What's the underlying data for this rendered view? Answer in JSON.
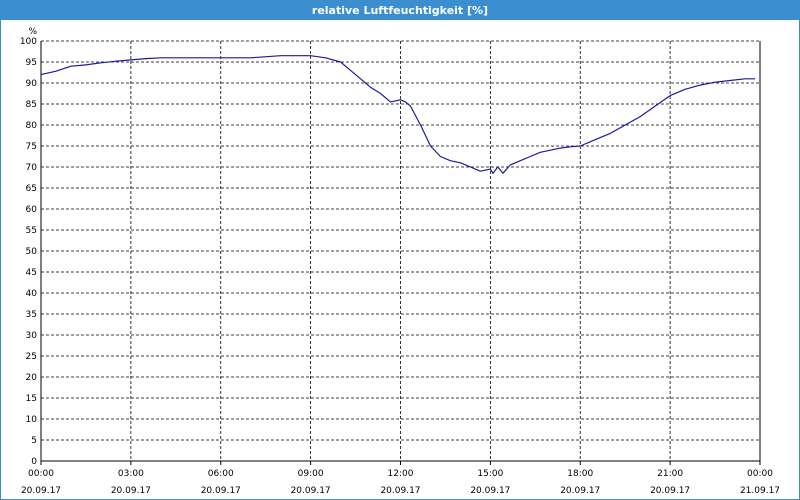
{
  "window": {
    "title": "relative Luftfeuchtigkeit [%]"
  },
  "colors": {
    "titlebar": "#3b8fd0",
    "line": "#1a1aa0",
    "grid": "#000000"
  },
  "chart_data": {
    "type": "line",
    "title": "relative Luftfeuchtigkeit [%]",
    "ylabel": "%",
    "xlabel": "",
    "ylim": [
      0,
      100
    ],
    "yticks": [
      0,
      5,
      10,
      15,
      20,
      25,
      30,
      35,
      40,
      45,
      50,
      55,
      60,
      65,
      70,
      75,
      80,
      85,
      90,
      95,
      100
    ],
    "xlim": [
      "20.09.17 00:00",
      "21.09.17 00:00"
    ],
    "xticks": [
      {
        "time": "00:00",
        "date": "20.09.17"
      },
      {
        "time": "03:00",
        "date": "20.09.17"
      },
      {
        "time": "06:00",
        "date": "20.09.17"
      },
      {
        "time": "09:00",
        "date": "20.09.17"
      },
      {
        "time": "12:00",
        "date": "20.09.17"
      },
      {
        "time": "15:00",
        "date": "20.09.17"
      },
      {
        "time": "18:00",
        "date": "20.09.17"
      },
      {
        "time": "21:00",
        "date": "20.09.17"
      },
      {
        "time": "00:00",
        "date": "21.09.17"
      }
    ],
    "grid": true,
    "legend": "none",
    "series": [
      {
        "points": [
          [
            "00:00",
            92
          ],
          [
            "00:30",
            92.8
          ],
          [
            "01:00",
            94
          ],
          [
            "01:30",
            94.3
          ],
          [
            "02:00",
            94.8
          ],
          [
            "02:30",
            95.2
          ],
          [
            "03:00",
            95.5
          ],
          [
            "03:30",
            95.8
          ],
          [
            "04:00",
            96
          ],
          [
            "05:00",
            96
          ],
          [
            "06:00",
            96
          ],
          [
            "07:00",
            96
          ],
          [
            "08:00",
            96.5
          ],
          [
            "09:00",
            96.5
          ],
          [
            "09:30",
            96
          ],
          [
            "10:00",
            95
          ],
          [
            "10:20",
            93
          ],
          [
            "10:40",
            91
          ],
          [
            "11:00",
            89
          ],
          [
            "11:20",
            87.5
          ],
          [
            "11:40",
            85.5
          ],
          [
            "12:00",
            86
          ],
          [
            "12:10",
            85.5
          ],
          [
            "12:20",
            84.5
          ],
          [
            "12:40",
            80
          ],
          [
            "13:00",
            75
          ],
          [
            "13:20",
            72.5
          ],
          [
            "13:40",
            71.5
          ],
          [
            "14:00",
            71
          ],
          [
            "14:20",
            70
          ],
          [
            "14:40",
            69
          ],
          [
            "15:00",
            69.5
          ],
          [
            "15:05",
            68.5
          ],
          [
            "15:15",
            70
          ],
          [
            "15:25",
            68.5
          ],
          [
            "15:40",
            70.5
          ],
          [
            "16:00",
            71.5
          ],
          [
            "16:20",
            72.5
          ],
          [
            "16:40",
            73.5
          ],
          [
            "17:00",
            74
          ],
          [
            "17:20",
            74.5
          ],
          [
            "17:40",
            74.8
          ],
          [
            "18:00",
            75
          ],
          [
            "18:30",
            76.5
          ],
          [
            "19:00",
            78
          ],
          [
            "19:30",
            80
          ],
          [
            "20:00",
            82
          ],
          [
            "20:30",
            84.5
          ],
          [
            "21:00",
            87
          ],
          [
            "21:30",
            88.5
          ],
          [
            "22:00",
            89.5
          ],
          [
            "22:30",
            90.2
          ],
          [
            "23:00",
            90.6
          ],
          [
            "23:30",
            91
          ],
          [
            "23:50",
            91
          ]
        ]
      }
    ]
  }
}
